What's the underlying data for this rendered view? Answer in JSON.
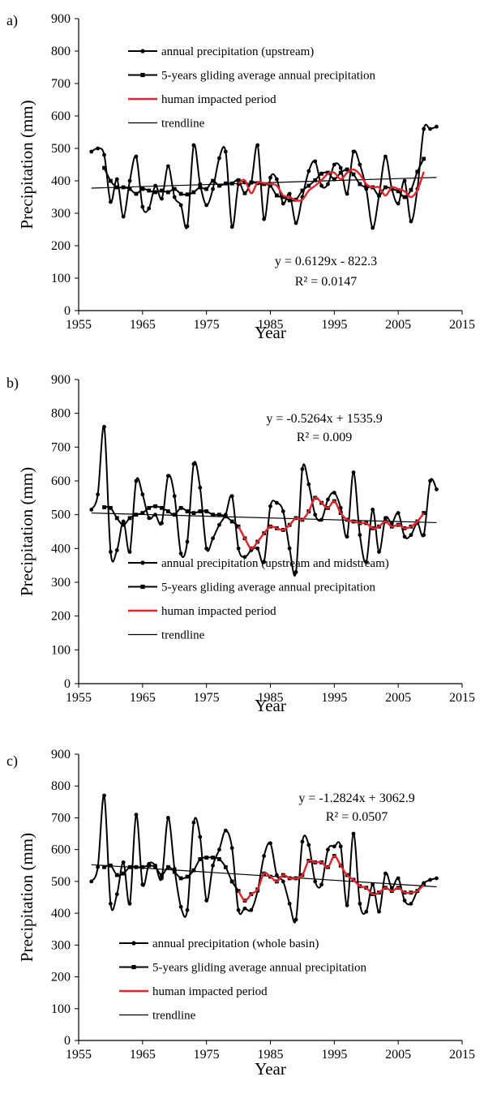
{
  "chart_data": [
    {
      "type": "line",
      "panel_label": "a)",
      "xlabel": "Year",
      "ylabel": "Precipitation (mm)",
      "xlim": [
        1955,
        2015
      ],
      "ylim": [
        0,
        900
      ],
      "xticks": [
        1955,
        1965,
        1975,
        1985,
        1995,
        2005,
        2015
      ],
      "yticks": [
        0,
        100,
        200,
        300,
        400,
        500,
        600,
        700,
        800,
        900
      ],
      "legend_position": "top-left",
      "equation": "y = 0.6129x - 822.3",
      "r2": "R² = 0.0147",
      "series": [
        {
          "name": "annual precipitation (upstream)",
          "color": "#000000",
          "marker": "circle",
          "x": [
            1957,
            1958,
            1959,
            1960,
            1961,
            1962,
            1963,
            1964,
            1965,
            1966,
            1967,
            1968,
            1969,
            1970,
            1971,
            1972,
            1973,
            1974,
            1975,
            1976,
            1977,
            1978,
            1979,
            1980,
            1981,
            1982,
            1983,
            1984,
            1985,
            1986,
            1987,
            1988,
            1989,
            1990,
            1991,
            1992,
            1993,
            1994,
            1995,
            1996,
            1997,
            1998,
            1999,
            2000,
            2001,
            2002,
            2003,
            2004,
            2005,
            2006,
            2007,
            2008,
            2009,
            2010,
            2011
          ],
          "y": [
            490,
            500,
            480,
            335,
            405,
            290,
            400,
            475,
            320,
            315,
            385,
            345,
            445,
            350,
            325,
            260,
            510,
            390,
            325,
            375,
            470,
            490,
            258,
            390,
            395,
            395,
            510,
            282,
            410,
            405,
            330,
            360,
            270,
            350,
            430,
            460,
            385,
            390,
            450,
            440,
            360,
            490,
            450,
            375,
            255,
            355,
            475,
            375,
            330,
            400,
            275,
            375,
            560,
            560,
            567
          ]
        },
        {
          "name": "5-years gliding average annual precipitation",
          "color": "#000000",
          "marker": "square",
          "x": [
            1959,
            1960,
            1961,
            1962,
            1963,
            1964,
            1965,
            1966,
            1967,
            1968,
            1969,
            1970,
            1971,
            1972,
            1973,
            1974,
            1975,
            1976,
            1977,
            1978,
            1979,
            1980,
            1981,
            1982,
            1983,
            1984,
            1985,
            1986,
            1987,
            1988,
            1989,
            1990,
            1991,
            1992,
            1993,
            1994,
            1995,
            1996,
            1997,
            1998,
            1999,
            2000,
            2001,
            2002,
            2003,
            2004,
            2005,
            2006,
            2007,
            2008,
            2009
          ],
          "y": [
            440,
            400,
            380,
            380,
            375,
            360,
            375,
            370,
            365,
            370,
            365,
            375,
            360,
            358,
            365,
            380,
            375,
            400,
            385,
            392,
            392,
            402,
            362,
            395,
            393,
            390,
            385,
            355,
            350,
            340,
            342,
            370,
            385,
            402,
            422,
            425,
            405,
            425,
            435,
            420,
            390,
            380,
            380,
            355,
            380,
            375,
            368,
            350,
            372,
            428,
            468
          ]
        },
        {
          "name": "human impacted period",
          "color": "#e8232a",
          "marker": "none",
          "x": [
            1980,
            1981,
            1982,
            1983,
            1984,
            1985,
            1986,
            1987,
            1988,
            1989,
            1990,
            1991,
            1992,
            1993,
            1994,
            1995,
            1996,
            1997,
            1998,
            1999,
            2000,
            2001,
            2002,
            2003,
            2004,
            2005,
            2006,
            2007,
            2008,
            2009
          ],
          "y": [
            392,
            402,
            362,
            395,
            393,
            390,
            385,
            355,
            350,
            340,
            342,
            370,
            385,
            402,
            422,
            425,
            405,
            425,
            435,
            420,
            390,
            380,
            380,
            355,
            380,
            375,
            368,
            350,
            372,
            428
          ]
        },
        {
          "name": "trendline",
          "color": "#000000",
          "marker": "none",
          "x": [
            1957,
            2011
          ],
          "y": [
            377.5,
            410.6
          ]
        }
      ]
    },
    {
      "type": "line",
      "panel_label": "b)",
      "xlabel": "Year",
      "ylabel": "Precipitation (mm)",
      "xlim": [
        1955,
        2015
      ],
      "ylim": [
        0,
        900
      ],
      "xticks": [
        1955,
        1965,
        1975,
        1985,
        1995,
        2005,
        2015
      ],
      "yticks": [
        0,
        100,
        200,
        300,
        400,
        500,
        600,
        700,
        800,
        900
      ],
      "legend_position": "bottom-left",
      "equation": "y = -0.5264x + 1535.9",
      "r2": "R² = 0.009",
      "series": [
        {
          "name": "annual precipitation (upstream and midstream)",
          "color": "#000000",
          "marker": "circle",
          "x": [
            1957,
            1958,
            1959,
            1960,
            1961,
            1962,
            1963,
            1964,
            1965,
            1966,
            1967,
            1968,
            1969,
            1970,
            1971,
            1972,
            1973,
            1974,
            1975,
            1976,
            1977,
            1978,
            1979,
            1980,
            1981,
            1982,
            1983,
            1984,
            1985,
            1986,
            1987,
            1988,
            1989,
            1990,
            1991,
            1992,
            1993,
            1994,
            1995,
            1996,
            1997,
            1998,
            1999,
            2000,
            2001,
            2002,
            2003,
            2004,
            2005,
            2006,
            2007,
            2008,
            2009,
            2010,
            2011
          ],
          "y": [
            515,
            560,
            760,
            390,
            395,
            480,
            390,
            600,
            560,
            490,
            500,
            475,
            615,
            555,
            385,
            420,
            650,
            580,
            400,
            430,
            470,
            500,
            555,
            400,
            375,
            395,
            400,
            360,
            525,
            535,
            510,
            400,
            330,
            635,
            590,
            500,
            485,
            545,
            565,
            520,
            435,
            625,
            440,
            360,
            515,
            390,
            490,
            475,
            505,
            435,
            440,
            475,
            440,
            600,
            575
          ]
        },
        {
          "name": "5-years gliding average annual precipitation",
          "color": "#000000",
          "marker": "square",
          "x": [
            1959,
            1960,
            1961,
            1962,
            1963,
            1964,
            1965,
            1966,
            1967,
            1968,
            1969,
            1970,
            1971,
            1972,
            1973,
            1974,
            1975,
            1976,
            1977,
            1978,
            1979,
            1980,
            1981,
            1982,
            1983,
            1984,
            1985,
            1986,
            1987,
            1988,
            1989,
            1990,
            1991,
            1992,
            1993,
            1994,
            1995,
            1996,
            1997,
            1998,
            1999,
            2000,
            2001,
            2002,
            2003,
            2004,
            2005,
            2006,
            2007,
            2008,
            2009
          ],
          "y": [
            522,
            520,
            490,
            470,
            490,
            500,
            505,
            520,
            525,
            520,
            510,
            500,
            520,
            510,
            505,
            510,
            510,
            500,
            500,
            495,
            480,
            465,
            430,
            400,
            420,
            445,
            465,
            460,
            455,
            470,
            490,
            485,
            510,
            550,
            535,
            520,
            540,
            505,
            485,
            480,
            475,
            475,
            460,
            465,
            480,
            465,
            470,
            460,
            465,
            480,
            505
          ]
        },
        {
          "name": "human impacted period",
          "color": "#e8232a",
          "marker": "none",
          "x": [
            1980,
            1981,
            1982,
            1983,
            1984,
            1985,
            1986,
            1987,
            1988,
            1989,
            1990,
            1991,
            1992,
            1993,
            1994,
            1995,
            1996,
            1997,
            1998,
            1999,
            2000,
            2001,
            2002,
            2003,
            2004,
            2005,
            2006,
            2007,
            2008,
            2009
          ],
          "y": [
            465,
            430,
            400,
            420,
            445,
            465,
            460,
            455,
            470,
            490,
            485,
            510,
            550,
            535,
            520,
            540,
            505,
            485,
            480,
            475,
            475,
            460,
            465,
            480,
            465,
            470,
            460,
            465,
            480,
            505
          ]
        },
        {
          "name": "trendline",
          "color": "#000000",
          "marker": "none",
          "x": [
            1957,
            2011
          ],
          "y": [
            505.0,
            476.6
          ]
        }
      ]
    },
    {
      "type": "line",
      "panel_label": "c)",
      "xlabel": "Year",
      "ylabel": "Precipitation (mm)",
      "xlim": [
        1955,
        2015
      ],
      "ylim": [
        0,
        900
      ],
      "xticks": [
        1955,
        1965,
        1975,
        1985,
        1995,
        2005,
        2015
      ],
      "yticks": [
        0,
        100,
        200,
        300,
        400,
        500,
        600,
        700,
        800,
        900
      ],
      "legend_position": "bottom-left",
      "equation": "y = -1.2824x + 3062.9",
      "r2": "R² = 0.0507",
      "series": [
        {
          "name": "annual precipitation (whole basin)",
          "color": "#000000",
          "marker": "circle",
          "x": [
            1957,
            1958,
            1959,
            1960,
            1961,
            1962,
            1963,
            1964,
            1965,
            1966,
            1967,
            1968,
            1969,
            1970,
            1971,
            1972,
            1973,
            1974,
            1975,
            1976,
            1977,
            1978,
            1979,
            1980,
            1981,
            1982,
            1983,
            1984,
            1985,
            1986,
            1987,
            1988,
            1989,
            1990,
            1991,
            1992,
            1993,
            1994,
            1995,
            1996,
            1997,
            1998,
            1999,
            2000,
            2001,
            2002,
            2003,
            2004,
            2005,
            2006,
            2007,
            2008,
            2009,
            2010,
            2011
          ],
          "y": [
            500,
            545,
            770,
            430,
            460,
            560,
            430,
            710,
            490,
            555,
            550,
            510,
            700,
            540,
            420,
            410,
            685,
            640,
            440,
            550,
            600,
            660,
            605,
            410,
            415,
            410,
            470,
            580,
            620,
            520,
            500,
            430,
            380,
            625,
            615,
            500,
            490,
            600,
            610,
            610,
            425,
            650,
            430,
            405,
            490,
            405,
            525,
            480,
            510,
            440,
            430,
            470,
            495,
            505,
            510
          ]
        },
        {
          "name": "5-years gliding average annual precipitation",
          "color": "#000000",
          "marker": "square",
          "x": [
            1959,
            1960,
            1961,
            1962,
            1963,
            1964,
            1965,
            1966,
            1967,
            1968,
            1969,
            1970,
            1971,
            1972,
            1973,
            1974,
            1975,
            1976,
            1977,
            1978,
            1979,
            1980,
            1981,
            1982,
            1983,
            1984,
            1985,
            1986,
            1987,
            1988,
            1989,
            1990,
            1991,
            1992,
            1993,
            1994,
            1995,
            1996,
            1997,
            1998,
            1999,
            2000,
            2001,
            2002,
            2003,
            2004,
            2005,
            2006,
            2007,
            2008,
            2009
          ],
          "y": [
            545,
            550,
            520,
            525,
            545,
            545,
            545,
            550,
            545,
            520,
            545,
            530,
            510,
            515,
            535,
            570,
            575,
            575,
            570,
            545,
            500,
            470,
            440,
            460,
            475,
            525,
            515,
            500,
            520,
            510,
            510,
            520,
            565,
            560,
            560,
            545,
            580,
            550,
            520,
            505,
            485,
            480,
            460,
            465,
            480,
            470,
            480,
            465,
            465,
            470,
            490
          ]
        },
        {
          "name": "human impacted period",
          "color": "#e8232a",
          "marker": "none",
          "x": [
            1980,
            1981,
            1982,
            1983,
            1984,
            1985,
            1986,
            1987,
            1988,
            1989,
            1990,
            1991,
            1992,
            1993,
            1994,
            1995,
            1996,
            1997,
            1998,
            1999,
            2000,
            2001,
            2002,
            2003,
            2004,
            2005,
            2006,
            2007,
            2008,
            2009
          ],
          "y": [
            470,
            440,
            460,
            475,
            525,
            515,
            500,
            520,
            510,
            510,
            520,
            565,
            560,
            560,
            545,
            580,
            550,
            520,
            505,
            485,
            480,
            460,
            465,
            480,
            470,
            480,
            465,
            465,
            470,
            490
          ]
        },
        {
          "name": "trendline",
          "color": "#000000",
          "marker": "none",
          "x": [
            1957,
            2011
          ],
          "y": [
            552.5,
            483.2
          ]
        }
      ]
    }
  ]
}
